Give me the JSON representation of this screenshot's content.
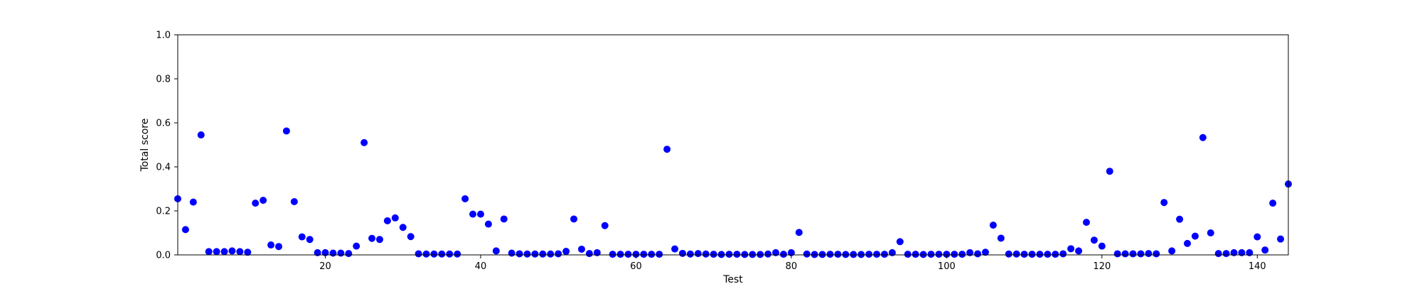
{
  "chart_data": {
    "type": "scatter",
    "title": "",
    "xlabel": "Test",
    "ylabel": "Total score",
    "xlim": [
      1,
      144
    ],
    "ylim": [
      0,
      1.0
    ],
    "xticks": [
      20,
      40,
      60,
      80,
      100,
      120,
      140
    ],
    "xtick_labels": [
      "20",
      "40",
      "60",
      "80",
      "100",
      "120",
      "140"
    ],
    "yticks": [
      0.0,
      0.2,
      0.4,
      0.6,
      0.8,
      1.0
    ],
    "ytick_labels": [
      "0.0",
      "0.2",
      "0.4",
      "0.6",
      "0.8",
      "1.0"
    ],
    "grid": false,
    "marker_color": "#0000ff",
    "series": [
      {
        "x": [
          1,
          2,
          3,
          4,
          5,
          6,
          7,
          8,
          9,
          10,
          11,
          12,
          13,
          14,
          15,
          16,
          17,
          18,
          19,
          20,
          21,
          22,
          23,
          24,
          25,
          26,
          27,
          28,
          29,
          30,
          31,
          32,
          33,
          34,
          35,
          36,
          37,
          38,
          39,
          40,
          41,
          42,
          43,
          44,
          45,
          46,
          47,
          48,
          49,
          50,
          51,
          52,
          53,
          54,
          55,
          56,
          57,
          58,
          59,
          60,
          61,
          62,
          63,
          64,
          65,
          66,
          67,
          68,
          69,
          70,
          71,
          72,
          73,
          74,
          75,
          76,
          77,
          78,
          79,
          80,
          81,
          82,
          83,
          84,
          85,
          86,
          87,
          88,
          89,
          90,
          91,
          92,
          93,
          94,
          95,
          96,
          97,
          98,
          99,
          100,
          101,
          102,
          103,
          104,
          105,
          106,
          107,
          108,
          109,
          110,
          111,
          112,
          113,
          114,
          115,
          116,
          117,
          118,
          119,
          120,
          121,
          122,
          123,
          124,
          125,
          126,
          127,
          128,
          129,
          130,
          131,
          132,
          133,
          134,
          135,
          136,
          137,
          138,
          139,
          140,
          141,
          142,
          143,
          144
        ],
        "y": [
          0.255,
          0.115,
          0.24,
          0.545,
          0.015,
          0.015,
          0.015,
          0.018,
          0.015,
          0.012,
          0.235,
          0.248,
          0.045,
          0.038,
          0.563,
          0.242,
          0.082,
          0.07,
          0.01,
          0.01,
          0.008,
          0.008,
          0.006,
          0.04,
          0.51,
          0.075,
          0.07,
          0.155,
          0.168,
          0.125,
          0.083,
          0.005,
          0.004,
          0.004,
          0.004,
          0.004,
          0.004,
          0.255,
          0.185,
          0.185,
          0.14,
          0.018,
          0.163,
          0.008,
          0.005,
          0.004,
          0.004,
          0.004,
          0.004,
          0.005,
          0.016,
          0.163,
          0.026,
          0.006,
          0.01,
          0.133,
          0.003,
          0.003,
          0.003,
          0.003,
          0.003,
          0.003,
          0.003,
          0.48,
          0.027,
          0.007,
          0.004,
          0.006,
          0.004,
          0.003,
          0.002,
          0.003,
          0.003,
          0.002,
          0.002,
          0.002,
          0.004,
          0.01,
          0.003,
          0.01,
          0.102,
          0.004,
          0.002,
          0.002,
          0.003,
          0.003,
          0.002,
          0.002,
          0.002,
          0.003,
          0.003,
          0.003,
          0.01,
          0.06,
          0.003,
          0.003,
          0.002,
          0.003,
          0.003,
          0.003,
          0.003,
          0.003,
          0.01,
          0.005,
          0.012,
          0.135,
          0.076,
          0.004,
          0.004,
          0.003,
          0.003,
          0.003,
          0.003,
          0.003,
          0.005,
          0.028,
          0.018,
          0.148,
          0.067,
          0.04,
          0.38,
          0.005,
          0.005,
          0.005,
          0.005,
          0.006,
          0.005,
          0.238,
          0.018,
          0.162,
          0.052,
          0.085,
          0.533,
          0.1,
          0.006,
          0.006,
          0.01,
          0.01,
          0.01,
          0.082,
          0.022,
          0.235,
          0.072,
          0.322
        ]
      }
    ]
  }
}
